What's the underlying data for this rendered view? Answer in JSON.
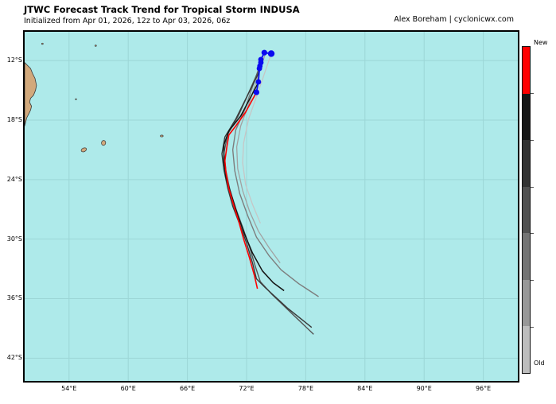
{
  "header": {
    "title": "JTWC Forecast Track Trend for Tropical Storm INDUSA",
    "subtitle": "Initialized from Apr 01, 2026, 12z to Apr 03, 2026, 06z",
    "attribution": "Alex Boreham | cyclonicwx.com"
  },
  "map": {
    "ocean_color": "#aeeaea",
    "grid_color": "#9cd6d6",
    "land_color": "#d2a97c",
    "coast_color": "#3a3a3a",
    "border_color": "#000000",
    "lon_min": 49.5,
    "lon_max": 99.5,
    "lat_min": 9.1,
    "lat_max": 44.3,
    "x_ticks": [
      {
        "lon": 54,
        "label": "54°E"
      },
      {
        "lon": 60,
        "label": "60°E"
      },
      {
        "lon": 66,
        "label": "66°E"
      },
      {
        "lon": 72,
        "label": "72°E"
      },
      {
        "lon": 78,
        "label": "78°E"
      },
      {
        "lon": 84,
        "label": "84°E"
      },
      {
        "lon": 90,
        "label": "90°E"
      },
      {
        "lon": 96,
        "label": "96°E"
      }
    ],
    "y_ticks": [
      {
        "lat": 12,
        "label": "12°S"
      },
      {
        "lat": 18,
        "label": "18°S"
      },
      {
        "lat": 24,
        "label": "24°S"
      },
      {
        "lat": 30,
        "label": "30°S"
      },
      {
        "lat": 36,
        "label": "36°S"
      },
      {
        "lat": 42,
        "label": "42°S"
      }
    ],
    "land": [
      {
        "name": "madagascar-northern-tip",
        "points": [
          [
            49.5,
            12.2
          ],
          [
            49.7,
            12.4
          ],
          [
            50.1,
            12.8
          ],
          [
            50.3,
            13.3
          ],
          [
            50.55,
            13.8
          ],
          [
            50.7,
            14.5
          ],
          [
            50.6,
            15.0
          ],
          [
            50.4,
            15.5
          ],
          [
            50.1,
            15.8
          ],
          [
            50.0,
            16.2
          ],
          [
            50.2,
            16.6
          ],
          [
            50.1,
            17.0
          ],
          [
            49.9,
            17.4
          ],
          [
            49.7,
            17.8
          ],
          [
            49.6,
            18.2
          ],
          [
            49.5,
            18.6
          ]
        ]
      }
    ],
    "islands": [
      {
        "name": "reunion",
        "lon": 55.5,
        "lat": 21.0,
        "rx": 3.5,
        "ry": 2.3,
        "rot": -25
      },
      {
        "name": "mauritius",
        "lon": 57.5,
        "lat": 20.3,
        "rx": 2.6,
        "ry": 3.1,
        "rot": 10
      },
      {
        "name": "rodrigues",
        "lon": 63.4,
        "lat": 19.6,
        "rx": 1.8,
        "ry": 1.1,
        "rot": 0
      },
      {
        "name": "islet-northwest",
        "lon": 51.3,
        "lat": 10.3,
        "rx": 1.0,
        "ry": 0.8,
        "rot": 0
      },
      {
        "name": "islet-north",
        "lon": 56.7,
        "lat": 10.5,
        "rx": 1.0,
        "ry": 0.8,
        "rot": 0
      },
      {
        "name": "islet-tromelin",
        "lon": 54.7,
        "lat": 15.9,
        "rx": 0.9,
        "ry": 0.7,
        "rot": 0
      }
    ],
    "tracks": [
      {
        "name": "forecast-7-oldest",
        "color": "#c6c6c6",
        "width": 1.3,
        "points": [
          [
            74.5,
            11.3
          ],
          [
            73.2,
            15.1
          ],
          [
            72.2,
            17.9
          ],
          [
            71.7,
            20.3
          ],
          [
            71.6,
            22.3
          ],
          [
            71.9,
            24.5
          ],
          [
            72.6,
            26.5
          ],
          [
            73.4,
            28.4
          ]
        ]
      },
      {
        "name": "forecast-6",
        "color": "#a2a2a2",
        "width": 1.3,
        "points": [
          [
            73.9,
            11.3
          ],
          [
            72.4,
            15.9
          ],
          [
            71.4,
            18.6
          ],
          [
            71.0,
            20.7
          ],
          [
            71.1,
            22.9
          ],
          [
            71.6,
            25.1
          ],
          [
            72.3,
            27.2
          ],
          [
            73.2,
            29.2
          ],
          [
            74.3,
            30.9
          ],
          [
            75.4,
            32.4
          ]
        ]
      },
      {
        "name": "forecast-5",
        "color": "#7d7d7d",
        "width": 1.4,
        "points": [
          [
            73.6,
            11.7
          ],
          [
            71.8,
            17.0
          ],
          [
            70.9,
            19.0
          ],
          [
            70.6,
            21.0
          ],
          [
            70.8,
            23.1
          ],
          [
            71.3,
            25.4
          ],
          [
            72.1,
            27.6
          ],
          [
            73.0,
            29.8
          ],
          [
            74.3,
            31.7
          ],
          [
            75.5,
            33.1
          ],
          [
            77.3,
            34.5
          ],
          [
            79.3,
            35.8
          ]
        ]
      },
      {
        "name": "forecast-4",
        "color": "#565656",
        "width": 1.4,
        "points": [
          [
            73.4,
            12.6
          ],
          [
            71.2,
            17.5
          ],
          [
            70.1,
            19.4
          ],
          [
            69.7,
            21.3
          ],
          [
            69.9,
            23.1
          ],
          [
            70.3,
            25.0
          ],
          [
            70.9,
            26.9
          ],
          [
            71.6,
            28.8
          ],
          [
            72.3,
            30.8
          ],
          [
            72.9,
            32.8
          ],
          [
            73.4,
            34.3
          ],
          [
            74.6,
            35.6
          ],
          [
            76.8,
            37.7
          ],
          [
            78.8,
            39.6
          ]
        ]
      },
      {
        "name": "forecast-3",
        "color": "#383838",
        "width": 1.4,
        "points": [
          [
            73.3,
            13.1
          ],
          [
            70.9,
            17.9
          ],
          [
            69.8,
            19.7
          ],
          [
            69.5,
            21.4
          ],
          [
            69.7,
            23.0
          ],
          [
            70.1,
            24.9
          ],
          [
            70.6,
            26.7
          ],
          [
            71.3,
            28.5
          ],
          [
            72.0,
            30.4
          ],
          [
            72.6,
            32.4
          ],
          [
            73.0,
            34.0
          ],
          [
            73.9,
            34.9
          ],
          [
            76.2,
            37.0
          ],
          [
            78.6,
            38.9
          ]
        ]
      },
      {
        "name": "forecast-2",
        "color": "#141414",
        "width": 1.5,
        "points": [
          [
            73.2,
            14.2
          ],
          [
            71.4,
            17.6
          ],
          [
            70.2,
            19.1
          ],
          [
            69.7,
            20.5
          ],
          [
            69.7,
            22.1
          ],
          [
            69.9,
            23.7
          ],
          [
            70.5,
            25.7
          ],
          [
            71.1,
            27.6
          ],
          [
            71.8,
            29.5
          ],
          [
            72.6,
            31.4
          ],
          [
            73.6,
            33.2
          ],
          [
            74.7,
            34.4
          ],
          [
            75.8,
            35.2
          ]
        ]
      },
      {
        "name": "forecast-1-newest",
        "color": "#ff0000",
        "width": 1.6,
        "points": [
          [
            73.0,
            15.2
          ],
          [
            71.9,
            17.2
          ],
          [
            70.9,
            18.6
          ],
          [
            70.2,
            19.5
          ],
          [
            70.0,
            20.7
          ],
          [
            69.8,
            22.1
          ],
          [
            69.9,
            23.2
          ],
          [
            70.2,
            24.9
          ],
          [
            70.7,
            26.6
          ],
          [
            71.2,
            28.2
          ],
          [
            71.7,
            30.0
          ],
          [
            72.3,
            31.9
          ],
          [
            72.8,
            33.7
          ],
          [
            73.1,
            35.0
          ]
        ]
      }
    ],
    "best_track": {
      "color": "#0a0af0",
      "width": 1.8,
      "points": [
        [
          74.5,
          11.3
        ],
        [
          73.8,
          11.2
        ],
        [
          73.45,
          11.9
        ],
        [
          73.35,
          12.55
        ],
        [
          73.3,
          12.8
        ],
        [
          73.2,
          14.15
        ],
        [
          73.0,
          15.2
        ]
      ],
      "dots": [
        {
          "lon": 74.5,
          "lat": 11.3,
          "r": 4.2
        },
        {
          "lon": 73.8,
          "lat": 11.2,
          "r": 3.6
        },
        {
          "lon": 73.45,
          "lat": 11.9,
          "r": 3.4
        },
        {
          "lon": 73.45,
          "lat": 12.2,
          "r": 3.4
        },
        {
          "lon": 73.35,
          "lat": 12.55,
          "r": 3.4
        },
        {
          "lon": 73.3,
          "lat": 12.8,
          "r": 3.4
        },
        {
          "lon": 73.2,
          "lat": 14.15,
          "r": 3.4
        },
        {
          "lon": 73.0,
          "lat": 15.2,
          "r": 3.6
        }
      ]
    }
  },
  "colorbar": {
    "new_label": "New",
    "old_label": "Old",
    "segments": [
      "#ff0000",
      "#161616",
      "#333333",
      "#515151",
      "#747474",
      "#989898",
      "#bdbdbd"
    ]
  }
}
